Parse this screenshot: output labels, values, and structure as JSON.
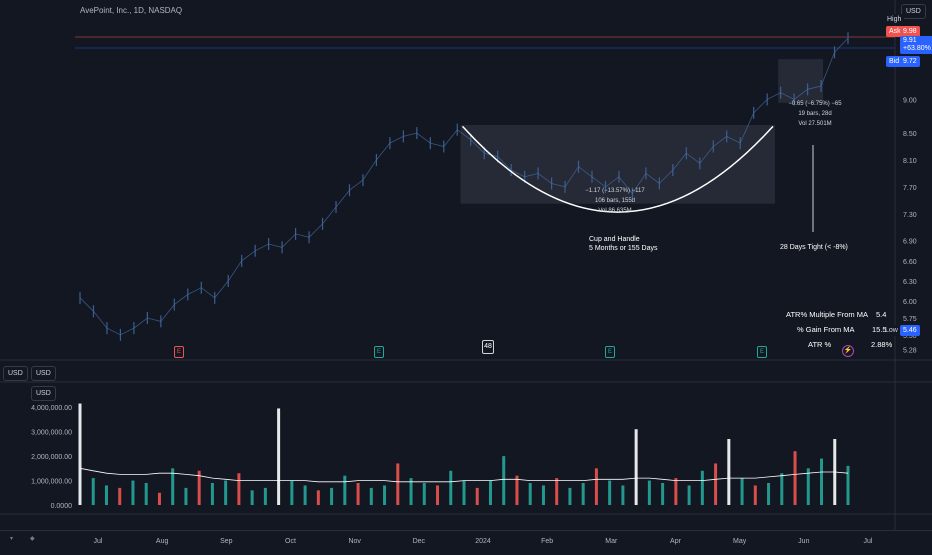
{
  "header": {
    "title": "AvePoint, Inc., 1D, NASDAQ",
    "currency": "USD"
  },
  "price_tags": {
    "high_label": "High",
    "ask_label": "Ask",
    "ask_value": "9.98",
    "last_value": "9.91",
    "last_change": "+63.80%",
    "bid_label": "Bid",
    "bid_value": "9.72",
    "low_label": "Low",
    "low_value": "5.46"
  },
  "colors": {
    "up": "#26a69a",
    "down": "#ef5350",
    "white": "#ffffff",
    "price_bar": "#2a4a7a",
    "box": "#363a45",
    "ask": "#ef5350",
    "bid": "#2962ff",
    "last": "#2962ff",
    "highlight": "#1e3a6a"
  },
  "annotations": {
    "cup_stats": [
      "−1.17 (−13.57%) −117",
      "106 bars, 155d",
      "Vol 86.635M"
    ],
    "handle_stats": [
      "−0.65 (−6.75%) −65",
      "19 bars, 28d",
      "Vol 27.501M"
    ],
    "cup_label": [
      "Cup and Handle",
      "5 Months or 155 Days"
    ],
    "handle_label": "28 Days Tight (< -8%)"
  },
  "stats_table": [
    {
      "label": "ATR% Multiple From MA",
      "value": "5.4"
    },
    {
      "label": "% Gain From MA",
      "value": "15.5"
    },
    {
      "label": "ATR %",
      "value": "2.88%"
    }
  ],
  "earnings_markers": [
    "E",
    "E",
    "E",
    "E"
  ],
  "bars_back_label": "48",
  "volume_pane": {
    "currency_a": "USD",
    "currency_b": "USD",
    "currency_c": "USD"
  },
  "chart_data": [
    {
      "type": "line",
      "title": "AvePoint, Inc., 1D, NASDAQ",
      "x_ticks": [
        "Jul",
        "Aug",
        "Sep",
        "Oct",
        "Nov",
        "Dec",
        "2024",
        "Feb",
        "Mar",
        "Apr",
        "May",
        "Jun",
        "Jul"
      ],
      "y_ticks": [
        9.0,
        8.5,
        8.1,
        7.7,
        7.3,
        6.9,
        6.6,
        6.3,
        6.0,
        5.75,
        5.5,
        5.28
      ],
      "ylim": [
        5.2,
        10.3
      ],
      "series": [
        {
          "values": [
            6.05,
            5.85,
            5.6,
            5.5,
            5.6,
            5.75,
            5.7,
            5.95,
            6.1,
            6.2,
            6.05,
            6.3,
            6.6,
            6.75,
            6.85,
            6.8,
            7.0,
            6.95,
            7.15,
            7.4,
            7.65,
            7.8,
            8.1,
            8.35,
            8.45,
            8.5,
            8.35,
            8.3,
            8.55,
            8.4,
            8.2,
            8.15,
            7.95,
            7.85,
            7.9,
            7.75,
            7.7,
            8.0,
            7.85,
            7.7,
            7.85,
            7.6,
            7.9,
            7.75,
            7.95,
            8.2,
            8.05,
            8.3,
            8.45,
            8.35,
            8.8,
            9.0,
            9.1,
            9.0,
            9.15,
            9.2,
            9.7,
            9.91
          ]
        }
      ]
    },
    {
      "type": "bar",
      "title": "Volume",
      "y_ticks": [
        "4,000,000.00",
        "3,000,000.00",
        "2,000,000.00",
        "1,000,000.00",
        "0.0000"
      ],
      "ylim": [
        0,
        4500000
      ],
      "values": [
        4150000,
        1100000,
        800000,
        700000,
        1000000,
        900000,
        500000,
        1500000,
        700000,
        1400000,
        900000,
        1000000,
        1300000,
        600000,
        700000,
        3950000,
        1000000,
        800000,
        600000,
        700000,
        1200000,
        900000,
        700000,
        800000,
        1700000,
        1100000,
        900000,
        800000,
        1400000,
        1000000,
        700000,
        1000000,
        2000000,
        1200000,
        900000,
        800000,
        1100000,
        700000,
        900000,
        1500000,
        1000000,
        800000,
        3100000,
        1000000,
        900000,
        1100000,
        800000,
        1400000,
        1700000,
        2700000,
        1100000,
        800000,
        900000,
        1300000,
        2200000,
        1500000,
        1900000,
        2700000,
        1600000
      ],
      "moving_average": [
        1500000,
        1400000,
        1300000,
        1250000,
        1250000,
        1250000,
        1300000,
        1300000,
        1250000,
        1200000,
        1100000,
        1050000,
        1000000,
        1000000,
        1000000,
        1000000,
        1000000,
        1000000,
        950000,
        950000,
        950000,
        1000000,
        1000000,
        1000000,
        950000,
        950000,
        950000,
        950000,
        950000,
        1000000,
        1000000,
        1000000,
        1050000,
        1050000,
        1000000,
        1000000,
        1000000,
        1000000,
        1000000,
        1050000,
        1050000,
        1050000,
        1100000,
        1100000,
        1050000,
        1000000,
        1000000,
        1000000,
        1050000,
        1100000,
        1100000,
        1100000,
        1150000,
        1200000,
        1250000,
        1300000,
        1350000,
        1350000,
        1300000
      ]
    }
  ]
}
